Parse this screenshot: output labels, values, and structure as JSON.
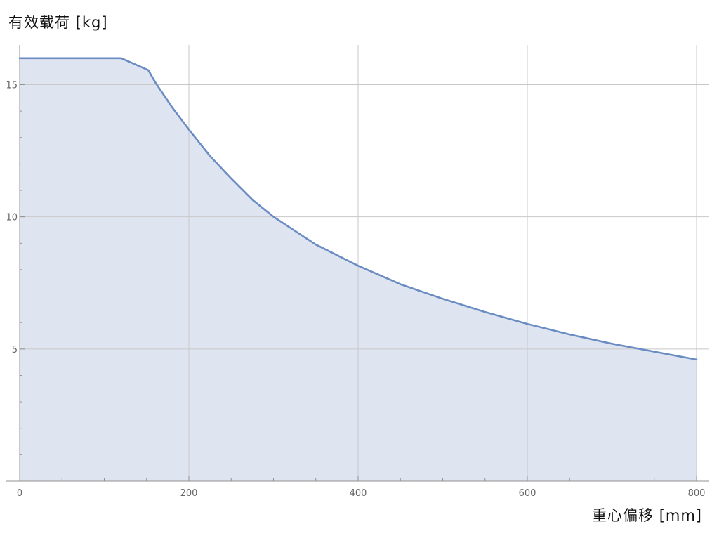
{
  "chart_data": {
    "type": "area",
    "ylabel": "有效载荷 [kg]",
    "xlabel": "重心偏移 [mm]",
    "xlim": [
      0,
      800
    ],
    "ylim": [
      0,
      16.5
    ],
    "grid": true,
    "xticks": [
      "0",
      "200",
      "400",
      "600",
      "800"
    ],
    "yticks": [
      "5",
      "10",
      "15"
    ],
    "xtick_values": [
      0,
      200,
      400,
      600,
      800
    ],
    "ytick_values": [
      5,
      10,
      15
    ],
    "x_minor_step": 50,
    "y_minor_step": 1,
    "series": [
      {
        "x": [
          0,
          120,
          152,
          160,
          180,
          200,
          225,
          250,
          275,
          300,
          350,
          400,
          450,
          500,
          550,
          600,
          650,
          700,
          750,
          800
        ],
        "y": [
          16,
          16,
          15.55,
          15.1,
          14.15,
          13.3,
          12.3,
          11.45,
          10.65,
          10.0,
          8.95,
          8.15,
          7.45,
          6.9,
          6.4,
          5.95,
          5.55,
          5.2,
          4.9,
          4.6
        ]
      }
    ],
    "colors": {
      "line": "#6a8cc3",
      "fill": "#dfe5f0",
      "grid": "#c8c8c8",
      "axis": "#909090",
      "tick_text": "#666666"
    }
  }
}
